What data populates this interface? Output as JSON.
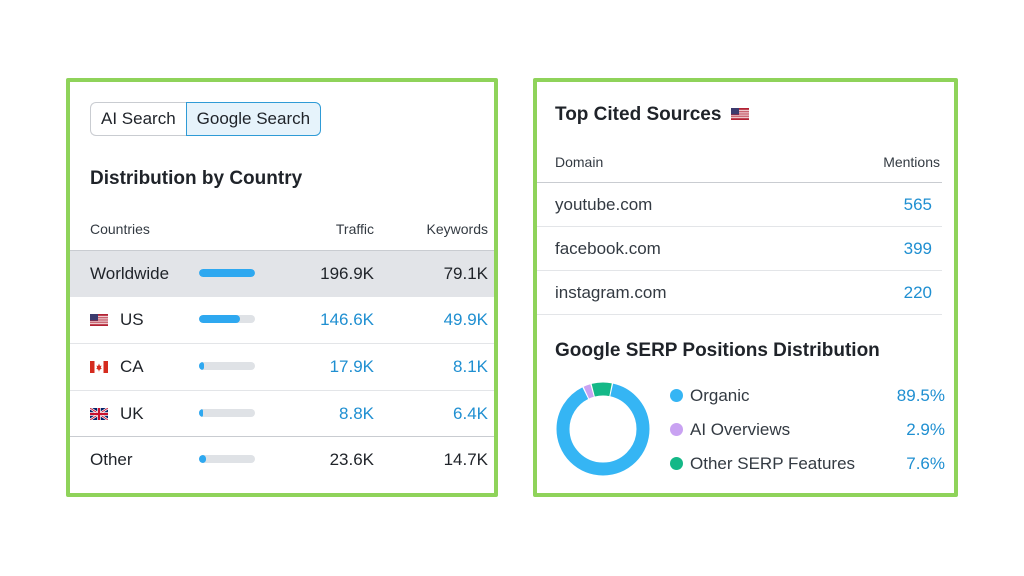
{
  "left": {
    "toggle": {
      "ai_search": "AI Search",
      "google_search": "Google Search"
    },
    "title": "Distribution by Country",
    "headers": {
      "countries": "Countries",
      "traffic": "Traffic",
      "keywords": "Keywords"
    },
    "rows": [
      {
        "country": "Worldwide",
        "flag": "",
        "traffic": "196.9K",
        "keywords": "79.1K",
        "share": 1.0
      },
      {
        "country": "US",
        "flag": "us-flag-icon",
        "traffic": "146.6K",
        "keywords": "49.9K",
        "share": 0.74
      },
      {
        "country": "CA",
        "flag": "ca-flag-icon",
        "traffic": "17.9K",
        "keywords": "8.1K",
        "share": 0.09
      },
      {
        "country": "UK",
        "flag": "uk-flag-icon",
        "traffic": "8.8K",
        "keywords": "6.4K",
        "share": 0.045
      },
      {
        "country": "Other",
        "flag": "",
        "traffic": "23.6K",
        "keywords": "14.7K",
        "share": 0.12
      }
    ]
  },
  "right": {
    "sources_title": "Top Cited Sources",
    "headers": {
      "domain": "Domain",
      "mentions": "Mentions"
    },
    "sources": [
      {
        "domain": "youtube.com",
        "mentions": "565"
      },
      {
        "domain": "facebook.com",
        "mentions": "399"
      },
      {
        "domain": "instagram.com",
        "mentions": "220"
      }
    ],
    "serp_title": "Google SERP Positions Distribution",
    "serp": [
      {
        "label": "Organic",
        "pct": "89.5%",
        "value": 89.5,
        "color": "#35b5f4"
      },
      {
        "label": "AI Overviews",
        "pct": "2.9%",
        "value": 2.9,
        "color": "#c9a2f2"
      },
      {
        "label": "Other SERP Features",
        "pct": "7.6%",
        "value": 7.6,
        "color": "#14b887"
      }
    ]
  },
  "colors": {
    "accent_blue": "#1f8fd1",
    "bar_blue": "#2ea8f0",
    "card_border": "#8fd35a"
  }
}
